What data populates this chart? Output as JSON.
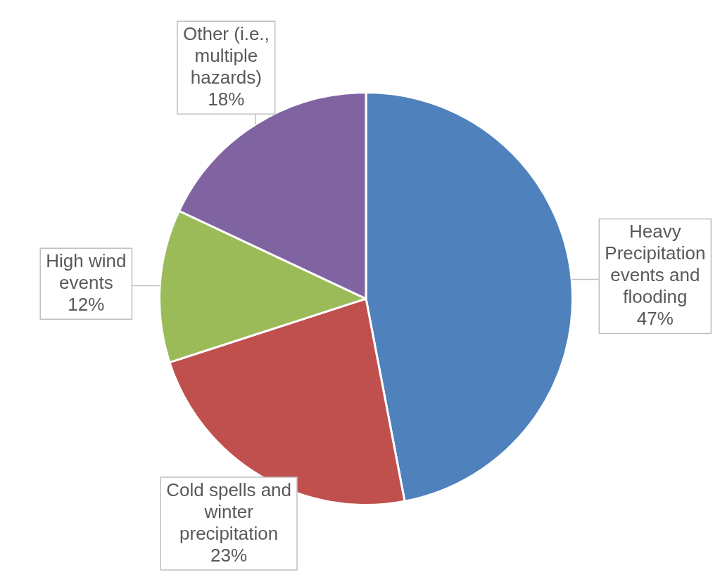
{
  "chart_data": {
    "type": "pie",
    "categories": [
      "Heavy Precipitation events and flooding",
      "Cold spells and winter precipitation",
      "High wind events",
      "Other (i.e., multiple hazards)"
    ],
    "values": [
      47,
      23,
      12,
      18
    ],
    "colors": [
      "#4f81bd",
      "#c0504d",
      "#9bbb59",
      "#8064a2"
    ],
    "value_labels": [
      "47%",
      "23%",
      "12%",
      "18%"
    ],
    "legend": false
  }
}
